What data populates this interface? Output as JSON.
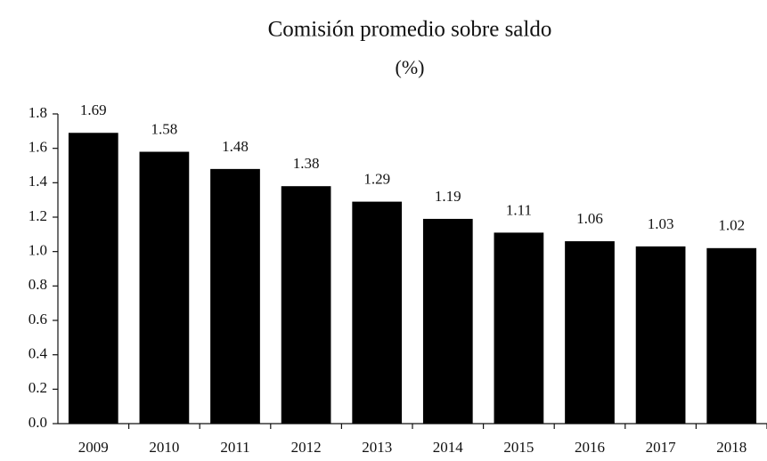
{
  "chart_data": {
    "type": "bar",
    "title": "Comisión promedio sobre saldo",
    "subtitle": "(%)",
    "categories": [
      "2009",
      "2010",
      "2011",
      "2012",
      "2013",
      "2014",
      "2015",
      "2016",
      "2017",
      "2018"
    ],
    "values": [
      1.69,
      1.58,
      1.48,
      1.38,
      1.29,
      1.19,
      1.11,
      1.06,
      1.03,
      1.02
    ],
    "color": "#000000",
    "ylim": [
      0,
      1.8
    ],
    "yticks": [
      {
        "value": 0,
        "label": "0.0"
      },
      0.2,
      0.4,
      0.6,
      0.8,
      {
        "value": 1,
        "label": "1.0"
      },
      1.2,
      1.4,
      1.6,
      1.8
    ],
    "grid": false
  }
}
